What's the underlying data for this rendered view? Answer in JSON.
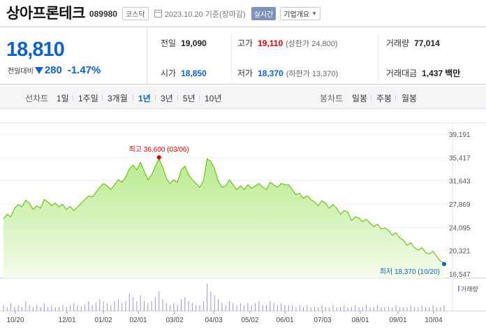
{
  "header": {
    "name": "상아프론테크",
    "code": "089980",
    "market": "코스닥",
    "date": "2023.10.20",
    "date_suffix": "기준(장마감)",
    "realtime_label": "실시간",
    "company_info_label": "기업개요"
  },
  "quote": {
    "price": "18,810",
    "change_label": "전일대비",
    "change": "280",
    "change_pct": "-1.47%",
    "prev_close_label": "전일",
    "prev_close": "19,090",
    "high_label": "고가",
    "high": "19,110",
    "upper_limit": "(상한가 24,800)",
    "volume_label": "거래량",
    "volume": "77,014",
    "open_label": "시가",
    "open": "18,850",
    "low_label": "저가",
    "low": "18,370",
    "lower_limit": "(하한가 13,370)",
    "amount_label": "거래대금",
    "amount": "1,437",
    "amount_unit": "백만"
  },
  "periods": {
    "line_label": "선차트",
    "items": [
      "1일",
      "1주일",
      "3개월",
      "1년",
      "3년",
      "5년",
      "10년"
    ],
    "active": "1년",
    "candle_label": "봉차트",
    "candle_items": [
      "일봉",
      "주봉",
      "월봉"
    ]
  },
  "colors": {
    "up": "#d60000",
    "down": "#1261c4",
    "line": "#5cb800",
    "fill_top": "#b8ea8c",
    "volume_bar": "#9d92d4"
  },
  "chart_data": {
    "type": "area",
    "y_ticks": [
      "39,191",
      "35,417",
      "31,643",
      "27,869",
      "24,095",
      "20,321",
      "16,547"
    ],
    "y_range": [
      16547,
      39191
    ],
    "x_labels": [
      "10/20",
      "12/01",
      "01/02",
      "02/01",
      "03/02",
      "04/03",
      "05/02",
      "06/01",
      "07/03",
      "08/01",
      "09/01",
      "10/04"
    ],
    "max_label": "최고 36,600 (03/06)",
    "min_label": "최저 18,370 (10/20)",
    "volume_legend": "거래량",
    "series": [
      {
        "values": [
          25500,
          26200,
          25800,
          27200,
          27800,
          27400,
          28500,
          28000,
          27000,
          27600,
          27200,
          28600,
          28200,
          27600,
          28000,
          27400,
          27800,
          27000,
          27500,
          26800,
          27400,
          28000,
          28600,
          29200,
          29000,
          29800,
          30600,
          31200,
          30800,
          30200,
          31000,
          31800,
          31400,
          32200,
          33600,
          34200,
          33400,
          34600,
          33200,
          31800,
          32600,
          34000,
          35200,
          33800,
          32000,
          31200,
          31800,
          31400,
          33400,
          34000,
          32600,
          31800,
          31200,
          30600,
          31600,
          35200,
          34800,
          33600,
          31600,
          30600,
          30800,
          31800,
          31000,
          30200,
          30800,
          30200,
          31000,
          30400,
          30800,
          31200,
          30600,
          30200,
          31400,
          31000,
          30600,
          31200,
          31000,
          31000,
          30200,
          29400,
          29600,
          28800,
          29200,
          28600,
          28200,
          27600,
          28400,
          28000,
          27200,
          27800,
          27200,
          26200,
          26800,
          26600,
          25200,
          25800,
          25600,
          25000,
          25400,
          24800,
          24200,
          24600,
          23800,
          24000,
          23600,
          22800,
          23200,
          22400,
          22000,
          21200,
          21600,
          20800,
          20400,
          20800,
          20000,
          19800,
          20200,
          19400,
          18600,
          18370
        ]
      }
    ],
    "volume": [
      3,
      2,
      4,
      2,
      3,
      2,
      5,
      3,
      2,
      3,
      2,
      4,
      2,
      3,
      2,
      2,
      3,
      2,
      3,
      4,
      3,
      2,
      3,
      5,
      3,
      4,
      6,
      5,
      4,
      3,
      5,
      6,
      4,
      5,
      9,
      7,
      5,
      8,
      5,
      4,
      5,
      7,
      10,
      6,
      4,
      3,
      4,
      3,
      6,
      7,
      5,
      4,
      3,
      3,
      5,
      14,
      10,
      8,
      6,
      4,
      3,
      5,
      4,
      3,
      4,
      3,
      4,
      3,
      4,
      5,
      3,
      3,
      5,
      4,
      3,
      4,
      3,
      3,
      3,
      2,
      3,
      2,
      3,
      2,
      2,
      2,
      3,
      2,
      2,
      3,
      2,
      2,
      3,
      2,
      2,
      3,
      2,
      2,
      3,
      2,
      2,
      3,
      2,
      2,
      2,
      2,
      3,
      2,
      2,
      2,
      3,
      2,
      2,
      3,
      2,
      2,
      3,
      2,
      2,
      3
    ]
  }
}
